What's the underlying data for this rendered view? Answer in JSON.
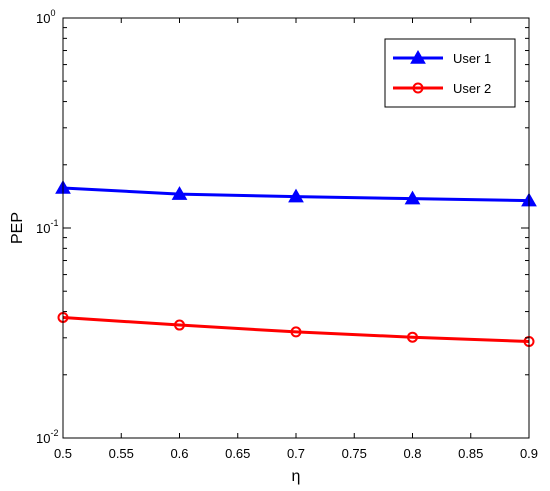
{
  "chart_data": {
    "type": "line",
    "title": "",
    "xlabel": "η",
    "ylabel": "PEP",
    "xlim": [
      0.5,
      0.9
    ],
    "ylim": [
      0.01,
      1
    ],
    "yscale": "log",
    "grid": false,
    "legend_position": "top-right",
    "x_ticks": [
      "0.5",
      "0.55",
      "0.6",
      "0.65",
      "0.7",
      "0.75",
      "0.8",
      "0.85",
      "0.9"
    ],
    "y_ticks": [
      {
        "value": 0.01,
        "base": "10",
        "exponent": "-2"
      },
      {
        "value": 0.1,
        "base": "10",
        "exponent": "-1"
      },
      {
        "value": 1,
        "base": "10",
        "exponent": "0"
      }
    ],
    "x": [
      0.5,
      0.6,
      0.7,
      0.8,
      0.9
    ],
    "series": [
      {
        "name": "User 1",
        "color": "#0000ff",
        "marker": "triangle",
        "values": [
          0.155,
          0.145,
          0.141,
          0.138,
          0.135
        ]
      },
      {
        "name": "User 2",
        "color": "#ff0000",
        "marker": "circle",
        "values": [
          0.0375,
          0.0345,
          0.032,
          0.0302,
          0.0288
        ]
      }
    ]
  }
}
